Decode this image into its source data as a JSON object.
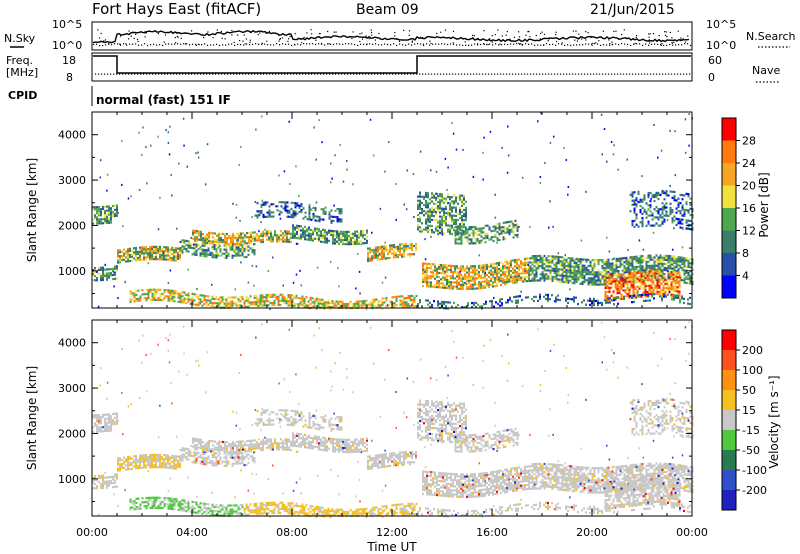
{
  "header": {
    "station": "Fort Hays East (fitACF)",
    "beam": "Beam 09",
    "date": "21/Jun/2015"
  },
  "top_panels": {
    "nsky_label": "N.Sky",
    "nsearch_label": "N.Search",
    "nsky_ticks": [
      "10^5",
      "10^0"
    ],
    "nsearch_ticks": [
      "10^5",
      "10^0"
    ],
    "freq_label_line1": "Freq.",
    "freq_label_line2": "[MHz]",
    "freq_ticks": [
      "18",
      "8"
    ],
    "nave_label": "Nave",
    "nave_ticks": [
      "60",
      "0"
    ],
    "cpid_label": "CPID",
    "cpid_text": "normal (fast) 151 IF"
  },
  "chart_data": [
    {
      "type": "heatmap",
      "name": "power",
      "ylabel": "Slant Range [km]",
      "xlabel": "",
      "yticks": [
        "4000",
        "3000",
        "2000",
        "1000"
      ],
      "ylim": [
        180,
        4500
      ],
      "xlim_hours": [
        0,
        24
      ],
      "colorbar": {
        "label": "Power [dB]",
        "ticks": [
          "28",
          "24",
          "20",
          "16",
          "12",
          "8",
          "4"
        ],
        "colors": [
          "#0000ff",
          "#2a4fa8",
          "#3a7d6a",
          "#4fa84f",
          "#f0e040",
          "#f5a623",
          "#ff7a10",
          "#ff0000"
        ]
      }
    },
    {
      "type": "heatmap",
      "name": "velocity",
      "ylabel": "Slant Range [km]",
      "xlabel": "Time UT",
      "yticks": [
        "4000",
        "3000",
        "2000",
        "1000"
      ],
      "ylim": [
        180,
        4500
      ],
      "xlim_hours": [
        0,
        24
      ],
      "xticks": [
        "00:00",
        "04:00",
        "08:00",
        "12:00",
        "16:00",
        "20:00",
        "00:00"
      ],
      "colorbar": {
        "label": "Velocity [m s⁻¹]",
        "ticks": [
          "200",
          "100",
          "50",
          "15",
          "-15",
          "-50",
          "-100",
          "-200"
        ],
        "colors": [
          "#2020c0",
          "#3050c8",
          "#2a7a50",
          "#50c840",
          "#c8c8c8",
          "#f5c020",
          "#ff9010",
          "#ff5020",
          "#ff0000"
        ]
      }
    }
  ]
}
